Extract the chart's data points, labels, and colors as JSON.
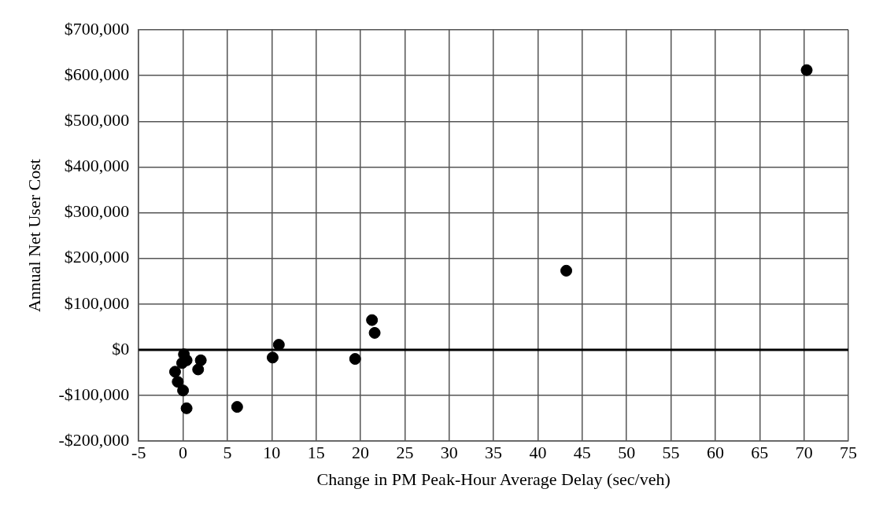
{
  "chart_data": {
    "type": "scatter",
    "xlabel": "Change in PM Peak-Hour Average Delay (sec/veh)",
    "ylabel": "Annual Net User Cost",
    "series": [
      {
        "color": "#000000",
        "x": [
          0.1,
          0.4,
          -0.1,
          2.0,
          1.7,
          -0.9,
          -0.6,
          0.0,
          0.4,
          6.1,
          10.1,
          10.8,
          21.3,
          21.6,
          19.4,
          43.2,
          70.3
        ],
        "values": [
          -10000,
          -23000,
          -29000,
          -23000,
          -43000,
          -48000,
          -70000,
          -89000,
          -128000,
          -125000,
          -17000,
          11000,
          65000,
          37000,
          -20000,
          173000,
          612000
        ]
      }
    ],
    "xlim": [
      -5,
      75
    ],
    "xticks": [
      -5,
      0,
      5,
      10,
      15,
      20,
      25,
      30,
      35,
      40,
      45,
      50,
      55,
      60,
      65,
      70,
      75
    ],
    "ylim": [
      -200000,
      700000
    ],
    "yticks": [
      {
        "value": -200000,
        "label": "-$200,000"
      },
      {
        "value": -100000,
        "label": "-$100,000"
      },
      {
        "value": 0,
        "label": "$0"
      },
      {
        "value": 100000,
        "label": "$100,000"
      },
      {
        "value": 200000,
        "label": "$200,000"
      },
      {
        "value": 300000,
        "label": "$300,000"
      },
      {
        "value": 400000,
        "label": "$400,000"
      },
      {
        "value": 500000,
        "label": "$500,000"
      },
      {
        "value": 600000,
        "label": "$600,000"
      },
      {
        "value": 700000,
        "label": "$700,000"
      }
    ],
    "ref_lines": [
      {
        "axis": "y",
        "value": 0,
        "color": "#000000"
      }
    ],
    "grid": true,
    "legend": false,
    "marker": "circle"
  }
}
